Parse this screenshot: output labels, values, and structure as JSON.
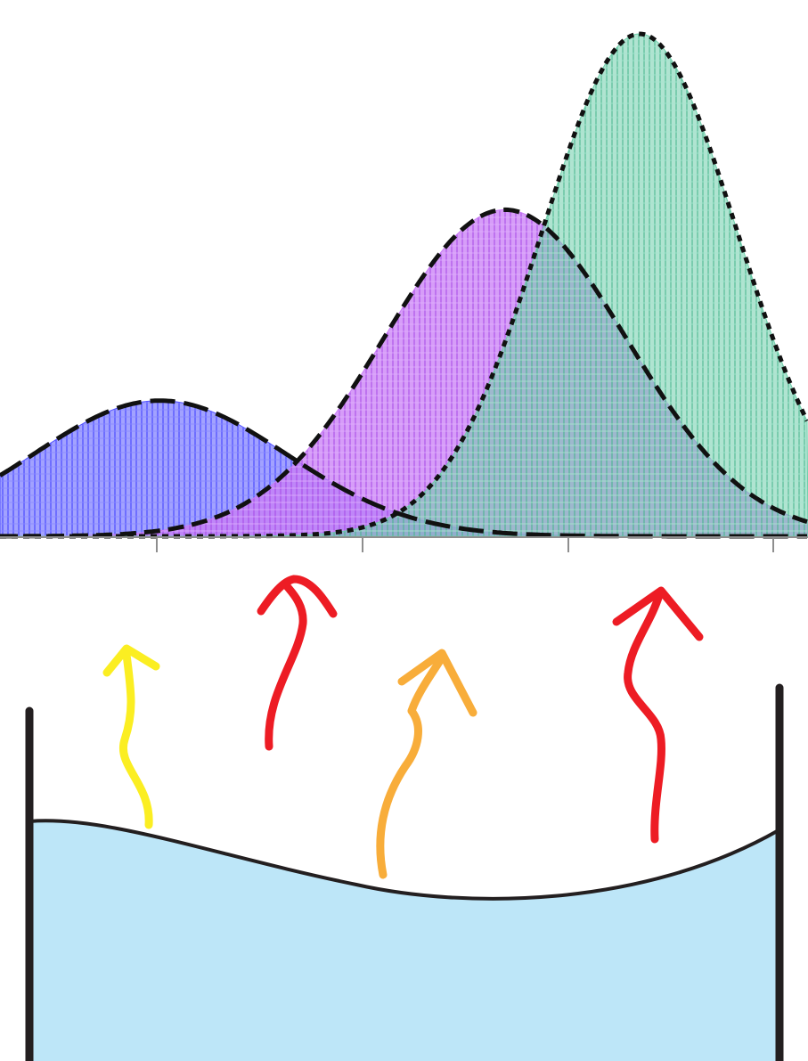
{
  "chart_data": {
    "type": "area",
    "title": "",
    "xlabel": "",
    "ylabel": "",
    "grid": false,
    "legend": "none",
    "x_ticks_count": 4,
    "series": [
      {
        "color": "#5555ff",
        "mean": -0.3,
        "sd": 0.75,
        "peak": 0.27,
        "style": "long-dash"
      },
      {
        "color": "#c87cf5",
        "mean": 1.75,
        "sd": 0.72,
        "peak": 0.65,
        "style": "dash"
      },
      {
        "color": "#6fceaa",
        "mean": 2.55,
        "sd": 0.58,
        "peak": 1.0,
        "style": "short-dash"
      }
    ]
  },
  "scene": {
    "container": {
      "name": "beaker",
      "wall_color": "#231f20",
      "liquid_color": "#bde6f8"
    },
    "arrows": [
      {
        "name": "low-energy-molecule",
        "color": "#fbee22"
      },
      {
        "name": "high-energy-molecule",
        "color": "#ed1c24"
      },
      {
        "name": "medium-energy-molecule",
        "color": "#f8ad3a"
      },
      {
        "name": "high-energy-molecule",
        "color": "#ed1c24"
      }
    ]
  }
}
